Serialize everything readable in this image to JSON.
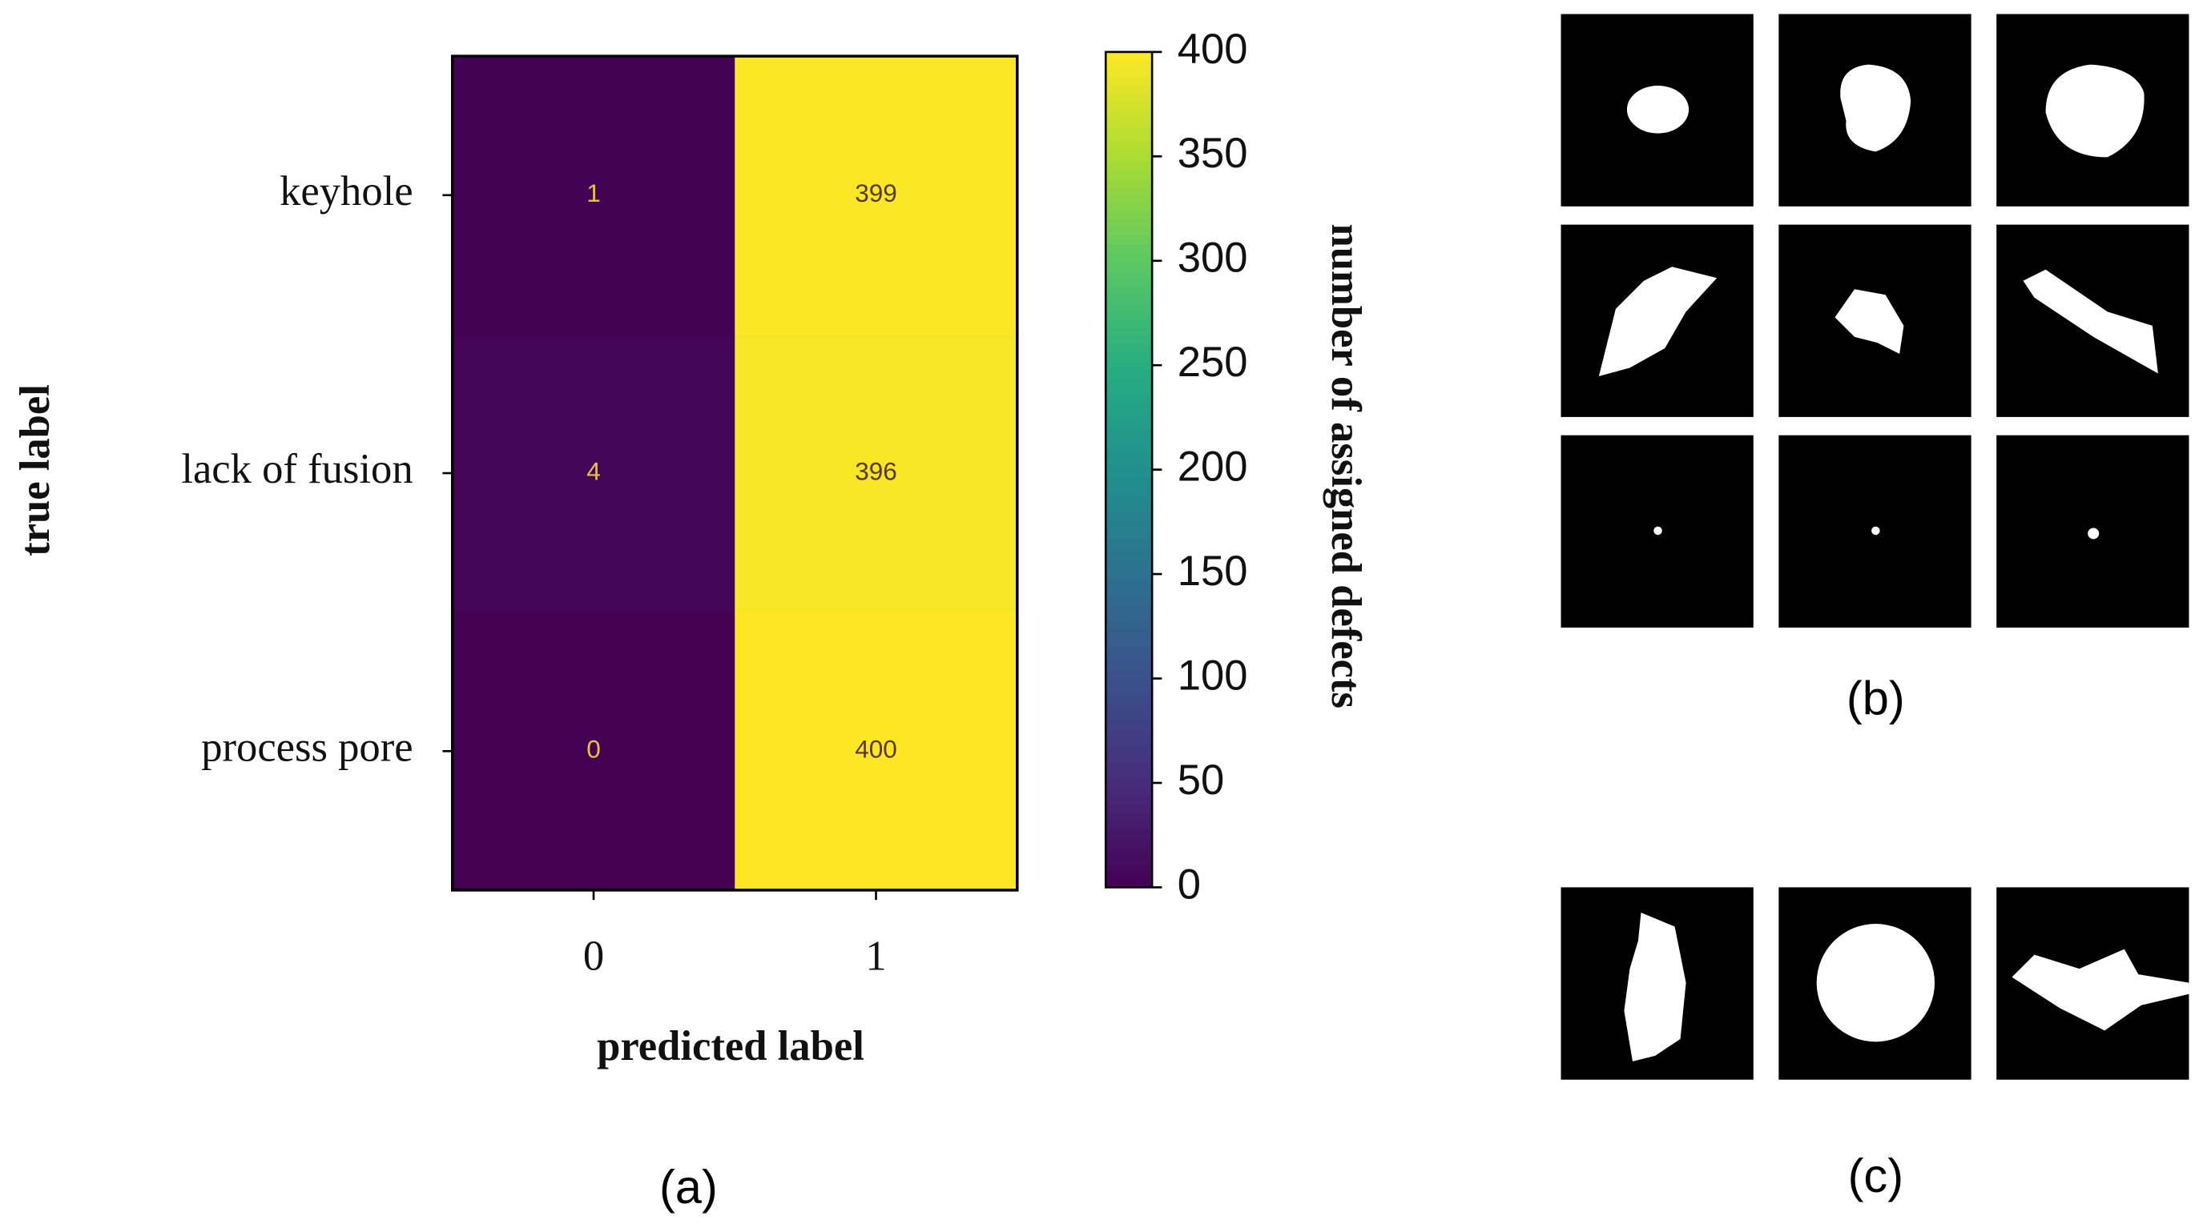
{
  "chart_data": {
    "type": "heatmap",
    "x_categories": [
      "0",
      "1"
    ],
    "y_categories": [
      "keyhole",
      "lack of fusion",
      "process pore"
    ],
    "values": [
      [
        1,
        399
      ],
      [
        4,
        396
      ],
      [
        0,
        400
      ]
    ],
    "xlabel": "predicted label",
    "ylabel": "true label",
    "colormap": "viridis",
    "colorbar": {
      "label": "number of assigned defects",
      "lim": [
        0,
        400
      ],
      "ticks": [
        0,
        50,
        100,
        150,
        200,
        250,
        300,
        350,
        400
      ]
    },
    "panel_labels": [
      "(a)",
      "(b)",
      "(c)"
    ]
  }
}
